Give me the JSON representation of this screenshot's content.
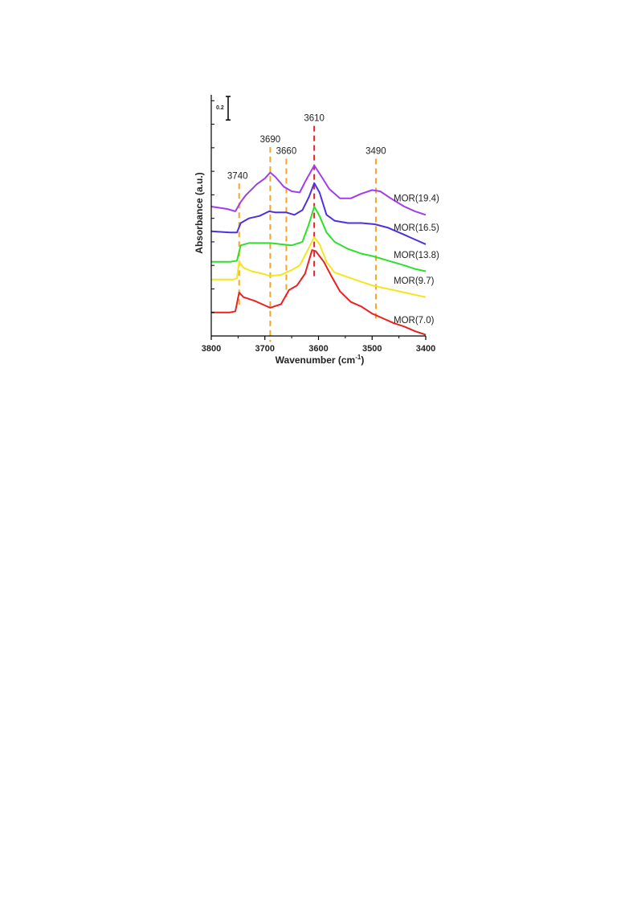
{
  "chart_data": {
    "type": "line",
    "xlabel": "Wavenumber (cm",
    "xlabel_sup": "-1",
    "xlabel_close": ")",
    "ylabel": "Absorbance (a.u.)",
    "xlim": [
      3800,
      3400
    ],
    "x_ticks": [
      "3800",
      "3700",
      "3600",
      "3500",
      "3400"
    ],
    "x_tick_values": [
      3800,
      3700,
      3600,
      3500,
      3400
    ],
    "scale_bar": {
      "label": "0.2",
      "value": 0.2
    },
    "ylim": [
      0,
      2.05
    ],
    "reference_lines": [
      {
        "label": "3740",
        "x": 3748,
        "color": "#f5a623",
        "y_top": 1.31
      },
      {
        "label": "3690",
        "x": 3690,
        "color": "#f5a623",
        "y_top": 1.62
      },
      {
        "label": "3660",
        "x": 3660,
        "color": "#f5a623",
        "y_top": 1.52
      },
      {
        "label": "3610",
        "x": 3608,
        "color": "#ee1c25",
        "y_top": 1.8
      },
      {
        "label": "3490",
        "x": 3493,
        "color": "#f5a623",
        "y_top": 1.52
      }
    ],
    "series": [
      {
        "name": "MOR(19.4)",
        "color": "#a23cf0",
        "points": [
          [
            3800,
            1.1
          ],
          [
            3770,
            1.08
          ],
          [
            3755,
            1.06
          ],
          [
            3745,
            1.14
          ],
          [
            3735,
            1.2
          ],
          [
            3715,
            1.29
          ],
          [
            3700,
            1.34
          ],
          [
            3690,
            1.39
          ],
          [
            3680,
            1.35
          ],
          [
            3665,
            1.27
          ],
          [
            3650,
            1.23
          ],
          [
            3635,
            1.22
          ],
          [
            3625,
            1.31
          ],
          [
            3608,
            1.45
          ],
          [
            3595,
            1.36
          ],
          [
            3580,
            1.25
          ],
          [
            3560,
            1.17
          ],
          [
            3540,
            1.17
          ],
          [
            3520,
            1.21
          ],
          [
            3500,
            1.24
          ],
          [
            3485,
            1.23
          ],
          [
            3465,
            1.17
          ],
          [
            3440,
            1.1
          ],
          [
            3420,
            1.06
          ],
          [
            3400,
            1.03
          ]
        ]
      },
      {
        "name": "MOR(16.5)",
        "color": "#4f30e0",
        "points": [
          [
            3800,
            0.89
          ],
          [
            3765,
            0.88
          ],
          [
            3752,
            0.88
          ],
          [
            3745,
            0.96
          ],
          [
            3730,
            1.0
          ],
          [
            3710,
            1.02
          ],
          [
            3692,
            1.06
          ],
          [
            3680,
            1.05
          ],
          [
            3660,
            1.05
          ],
          [
            3645,
            1.03
          ],
          [
            3630,
            1.07
          ],
          [
            3618,
            1.18
          ],
          [
            3608,
            1.3
          ],
          [
            3598,
            1.22
          ],
          [
            3585,
            1.03
          ],
          [
            3570,
            0.98
          ],
          [
            3545,
            0.96
          ],
          [
            3520,
            0.96
          ],
          [
            3495,
            0.95
          ],
          [
            3470,
            0.92
          ],
          [
            3440,
            0.86
          ],
          [
            3420,
            0.82
          ],
          [
            3400,
            0.78
          ]
        ]
      },
      {
        "name": "MOR(13.8)",
        "color": "#2ee02e",
        "points": [
          [
            3800,
            0.63
          ],
          [
            3765,
            0.63
          ],
          [
            3752,
            0.64
          ],
          [
            3745,
            0.77
          ],
          [
            3730,
            0.79
          ],
          [
            3705,
            0.79
          ],
          [
            3690,
            0.79
          ],
          [
            3670,
            0.78
          ],
          [
            3650,
            0.77
          ],
          [
            3630,
            0.8
          ],
          [
            3618,
            0.95
          ],
          [
            3608,
            1.1
          ],
          [
            3598,
            1.02
          ],
          [
            3585,
            0.88
          ],
          [
            3570,
            0.8
          ],
          [
            3545,
            0.74
          ],
          [
            3520,
            0.7
          ],
          [
            3500,
            0.68
          ],
          [
            3470,
            0.64
          ],
          [
            3440,
            0.6
          ],
          [
            3420,
            0.57
          ],
          [
            3400,
            0.55
          ]
        ]
      },
      {
        "name": "MOR(9.7)",
        "color": "#f5e61c",
        "points": [
          [
            3800,
            0.48
          ],
          [
            3760,
            0.48
          ],
          [
            3752,
            0.49
          ],
          [
            3748,
            0.63
          ],
          [
            3740,
            0.58
          ],
          [
            3725,
            0.55
          ],
          [
            3705,
            0.53
          ],
          [
            3690,
            0.51
          ],
          [
            3670,
            0.52
          ],
          [
            3650,
            0.56
          ],
          [
            3635,
            0.6
          ],
          [
            3620,
            0.73
          ],
          [
            3608,
            0.84
          ],
          [
            3598,
            0.78
          ],
          [
            3585,
            0.63
          ],
          [
            3570,
            0.54
          ],
          [
            3545,
            0.5
          ],
          [
            3520,
            0.46
          ],
          [
            3500,
            0.43
          ],
          [
            3470,
            0.4
          ],
          [
            3440,
            0.37
          ],
          [
            3420,
            0.35
          ],
          [
            3400,
            0.33
          ]
        ]
      },
      {
        "name": "MOR(7.0)",
        "color": "#e82222",
        "points": [
          [
            3800,
            0.2
          ],
          [
            3765,
            0.2
          ],
          [
            3755,
            0.21
          ],
          [
            3748,
            0.37
          ],
          [
            3740,
            0.33
          ],
          [
            3720,
            0.3
          ],
          [
            3700,
            0.26
          ],
          [
            3690,
            0.24
          ],
          [
            3670,
            0.27
          ],
          [
            3655,
            0.39
          ],
          [
            3640,
            0.43
          ],
          [
            3625,
            0.53
          ],
          [
            3612,
            0.73
          ],
          [
            3605,
            0.72
          ],
          [
            3590,
            0.63
          ],
          [
            3575,
            0.5
          ],
          [
            3560,
            0.38
          ],
          [
            3540,
            0.29
          ],
          [
            3520,
            0.25
          ],
          [
            3500,
            0.19
          ],
          [
            3480,
            0.15
          ],
          [
            3460,
            0.11
          ],
          [
            3440,
            0.08
          ],
          [
            3420,
            0.04
          ],
          [
            3400,
            0.01
          ]
        ]
      }
    ]
  }
}
